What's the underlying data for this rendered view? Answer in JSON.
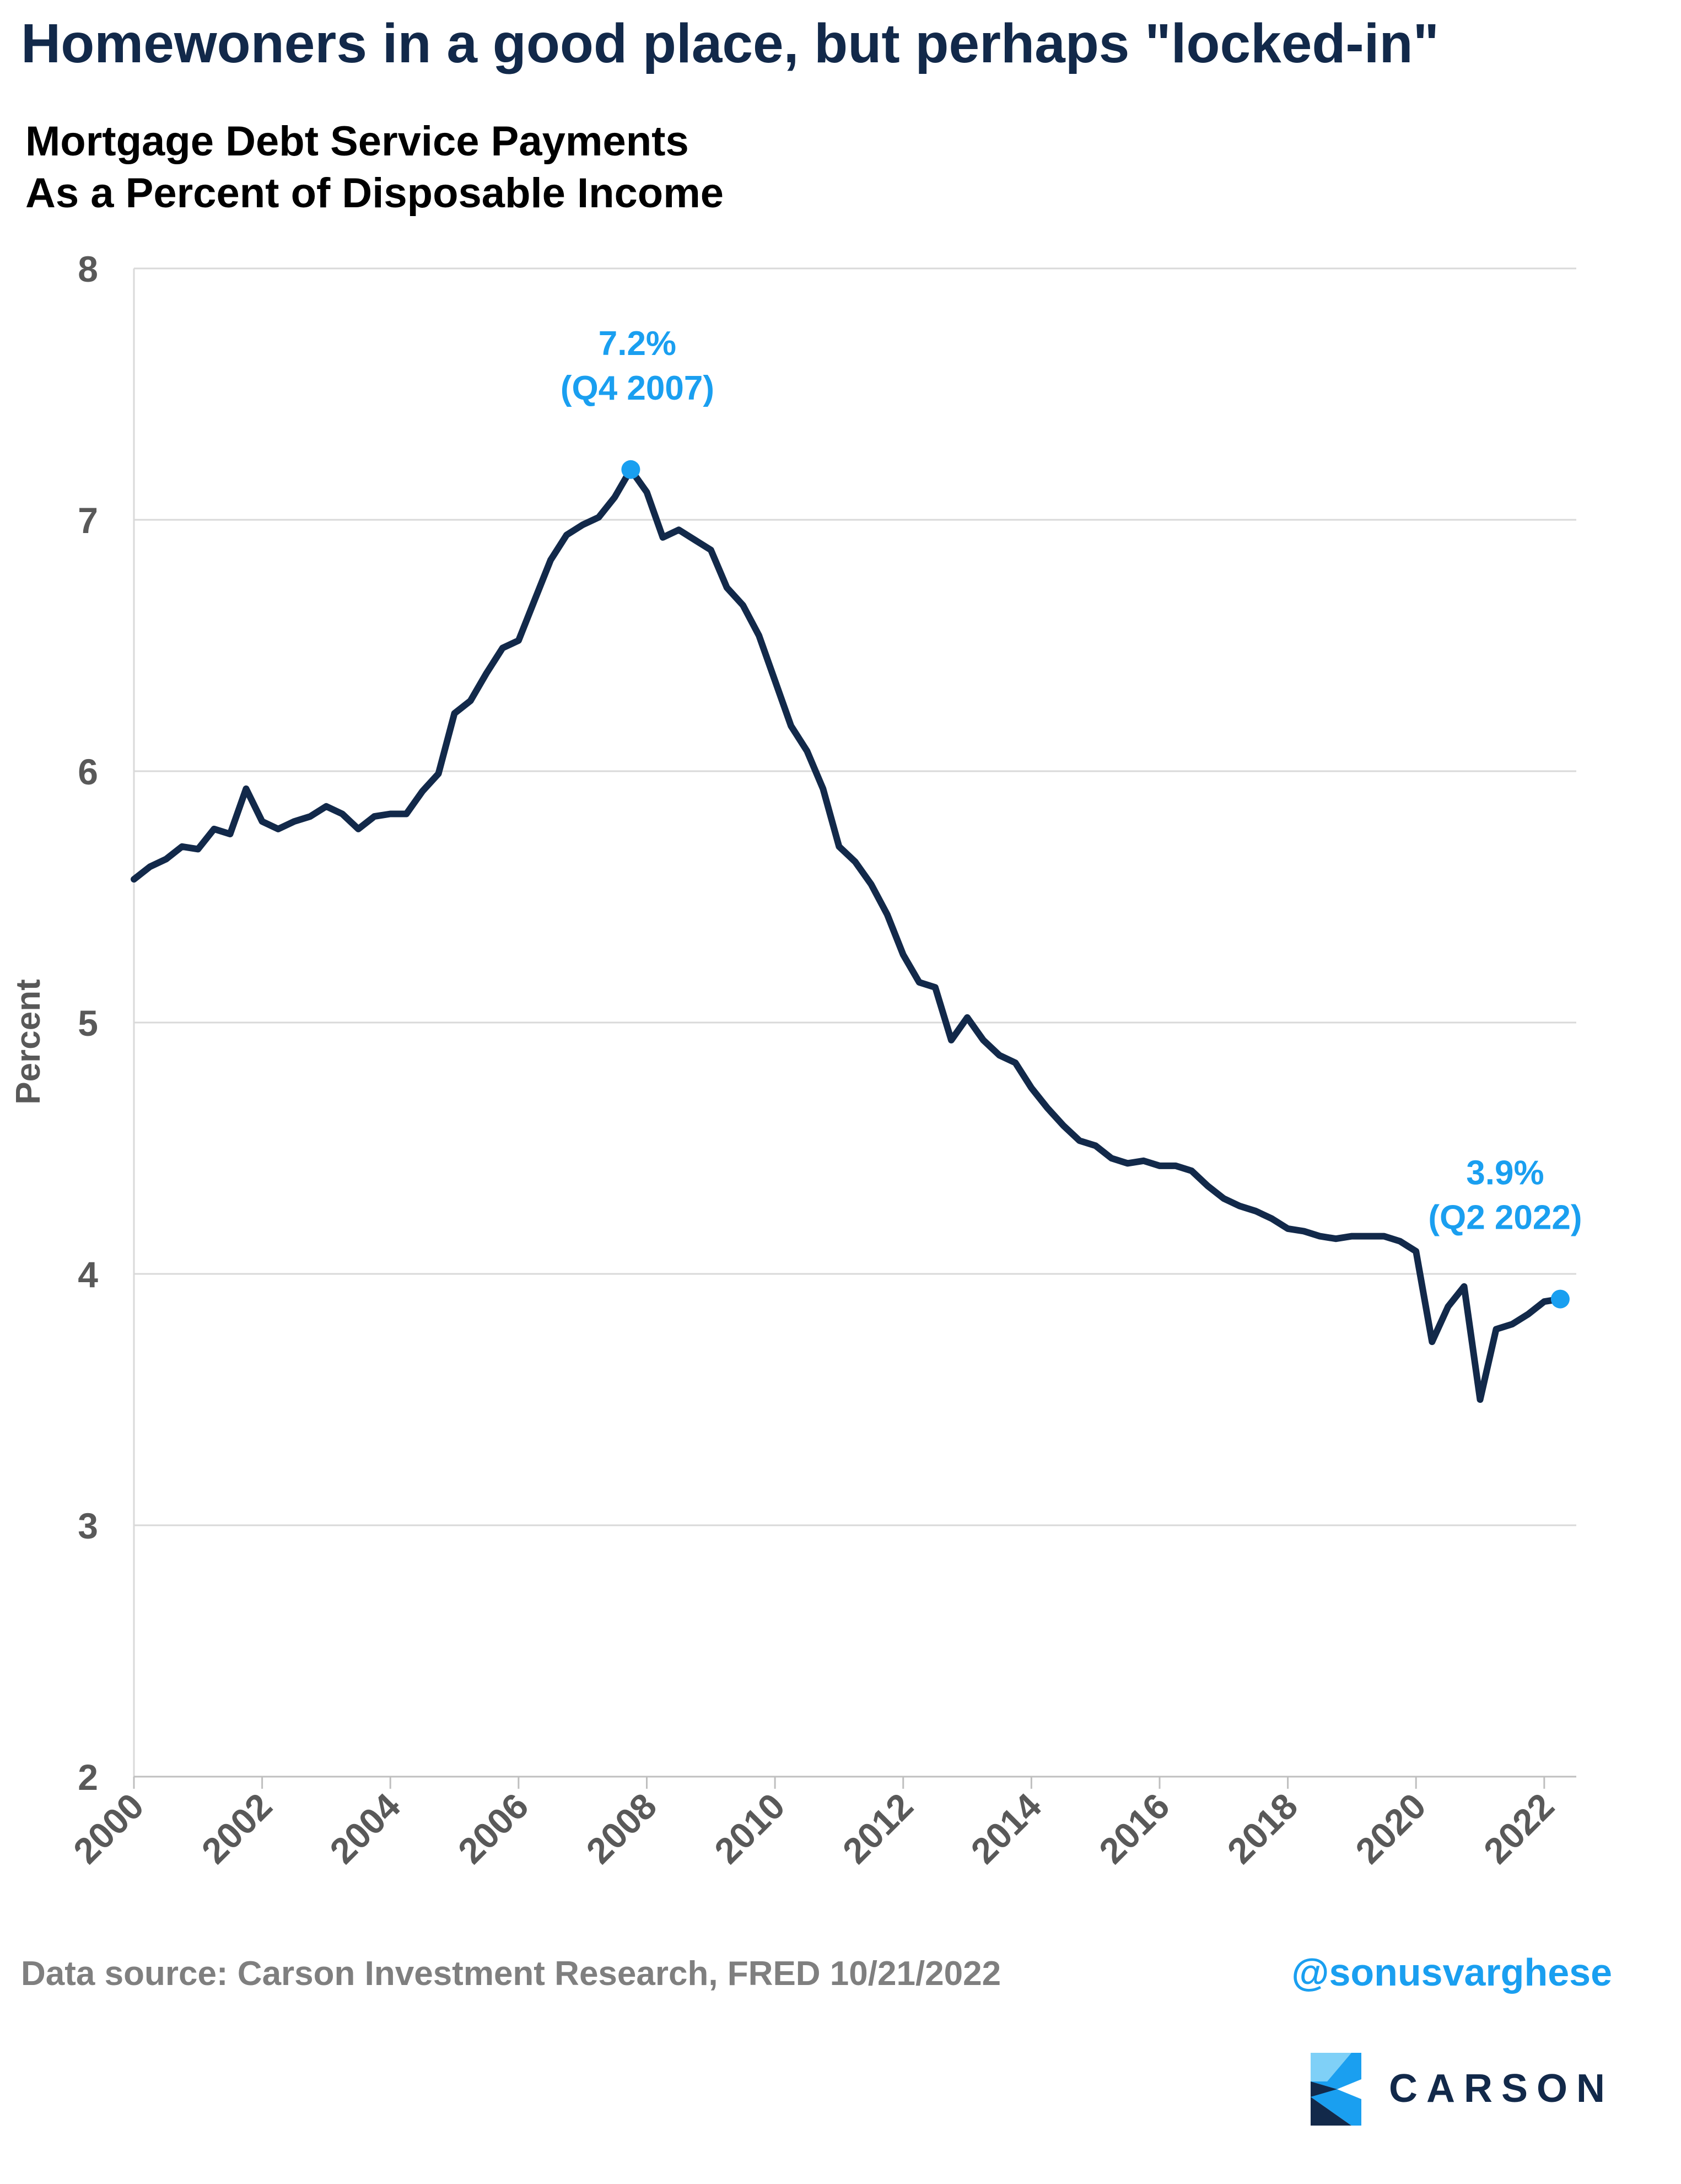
{
  "title": "Homewoners in a good place, but perhaps \"locked-in\"",
  "chart_data": {
    "type": "line",
    "title": "Mortgage Debt Service Payments",
    "subtitle": "As a Percent of Disposable Income",
    "ylabel": "Percent",
    "xlabel": "",
    "xlim": [
      2000,
      2022.5
    ],
    "ylim": [
      2,
      8
    ],
    "xticks": [
      "2000",
      "2002",
      "2004",
      "2006",
      "2008",
      "2010",
      "2012",
      "2014",
      "2016",
      "2018",
      "2020",
      "2022"
    ],
    "yticks": [
      "2",
      "3",
      "4",
      "5",
      "6",
      "7",
      "8"
    ],
    "grid": "horizontal",
    "series": [
      {
        "color": "#12294a",
        "x": [
          2000.0,
          2000.25,
          2000.5,
          2000.75,
          2001.0,
          2001.25,
          2001.5,
          2001.75,
          2002.0,
          2002.25,
          2002.5,
          2002.75,
          2003.0,
          2003.25,
          2003.5,
          2003.75,
          2004.0,
          2004.25,
          2004.5,
          2004.75,
          2005.0,
          2005.25,
          2005.5,
          2005.75,
          2006.0,
          2006.25,
          2006.5,
          2006.75,
          2007.0,
          2007.25,
          2007.5,
          2007.75,
          2008.0,
          2008.25,
          2008.5,
          2008.75,
          2009.0,
          2009.25,
          2009.5,
          2009.75,
          2010.0,
          2010.25,
          2010.5,
          2010.75,
          2011.0,
          2011.25,
          2011.5,
          2011.75,
          2012.0,
          2012.25,
          2012.5,
          2012.75,
          2013.0,
          2013.25,
          2013.5,
          2013.75,
          2014.0,
          2014.25,
          2014.5,
          2014.75,
          2015.0,
          2015.25,
          2015.5,
          2015.75,
          2016.0,
          2016.25,
          2016.5,
          2016.75,
          2017.0,
          2017.25,
          2017.5,
          2017.75,
          2018.0,
          2018.25,
          2018.5,
          2018.75,
          2019.0,
          2019.25,
          2019.5,
          2019.75,
          2020.0,
          2020.25,
          2020.5,
          2020.75,
          2021.0,
          2021.25,
          2021.5,
          2021.75,
          2022.0,
          2022.25
        ],
        "values": [
          5.57,
          5.62,
          5.65,
          5.7,
          5.69,
          5.77,
          5.75,
          5.93,
          5.8,
          5.77,
          5.8,
          5.82,
          5.86,
          5.83,
          5.77,
          5.82,
          5.83,
          5.83,
          5.92,
          5.99,
          6.23,
          6.28,
          6.39,
          6.49,
          6.52,
          6.68,
          6.84,
          6.94,
          6.98,
          7.01,
          7.09,
          7.2,
          7.11,
          6.93,
          6.96,
          6.92,
          6.88,
          6.73,
          6.66,
          6.54,
          6.36,
          6.18,
          6.08,
          5.93,
          5.7,
          5.64,
          5.55,
          5.43,
          5.27,
          5.16,
          5.14,
          4.93,
          5.02,
          4.93,
          4.87,
          4.84,
          4.74,
          4.66,
          4.59,
          4.53,
          4.51,
          4.46,
          4.44,
          4.45,
          4.43,
          4.43,
          4.41,
          4.35,
          4.3,
          4.27,
          4.25,
          4.22,
          4.18,
          4.17,
          4.15,
          4.14,
          4.15,
          4.15,
          4.15,
          4.13,
          4.09,
          3.73,
          3.87,
          3.95,
          3.5,
          3.78,
          3.8,
          3.84,
          3.89,
          3.9
        ]
      }
    ],
    "annotations": [
      {
        "x": 2007.75,
        "y": 7.2,
        "value": "7.2%",
        "period": "(Q4 2007)",
        "color": "#1a9ff0"
      },
      {
        "x": 2022.25,
        "y": 3.9,
        "value": "3.9%",
        "period": "(Q2 2022)",
        "color": "#1a9ff0"
      }
    ]
  },
  "footer": {
    "source": "Data source: Carson Investment Research, FRED   10/21/2022",
    "handle": "@sonusvarghese"
  },
  "brand": {
    "name": "CARSON",
    "icon": "carson-logo-icon",
    "colors": [
      "#12294a",
      "#1a9ff0",
      "#7fd0f7"
    ]
  }
}
